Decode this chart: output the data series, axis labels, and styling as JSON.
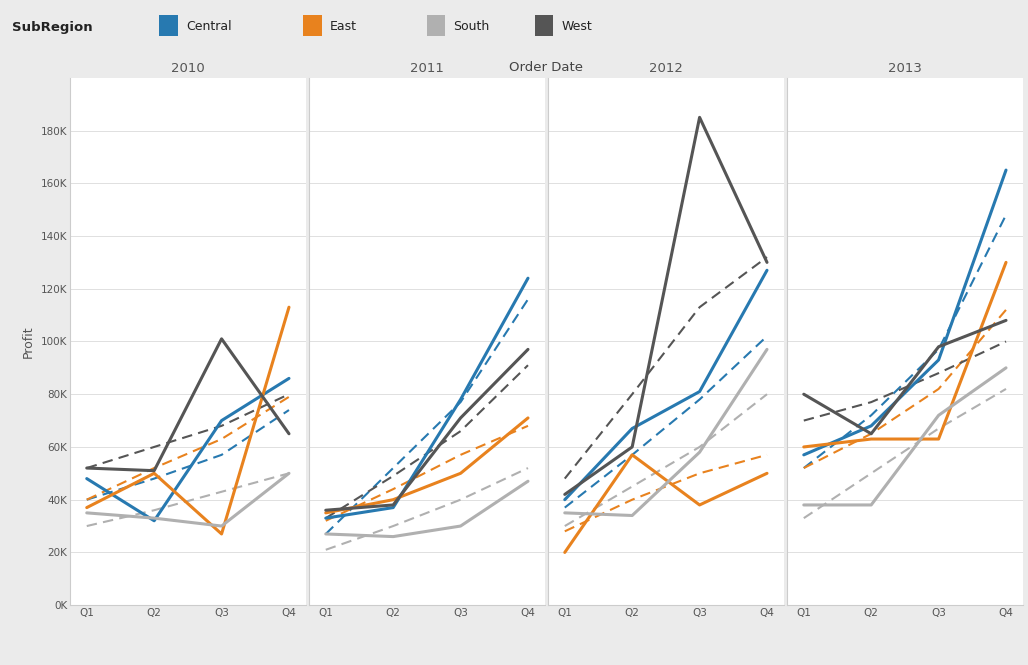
{
  "title": "Order Date",
  "ylabel": "Profit",
  "years": [
    "2010",
    "2011",
    "2012",
    "2013"
  ],
  "quarters": [
    "Q1",
    "Q2",
    "Q3",
    "Q4"
  ],
  "subregions": [
    "Central",
    "East",
    "South",
    "West"
  ],
  "colors": {
    "Central": "#2779B0",
    "East": "#E8821E",
    "South": "#B0B0B0",
    "West": "#555555"
  },
  "legend_colors": {
    "Central": "#2779B0",
    "East": "#E8821E",
    "South": "#AAAAAA",
    "West": "#444444"
  },
  "background_color": "#EBEBEB",
  "panel_background": "#FFFFFF",
  "data": {
    "2010": {
      "Central": {
        "solid": [
          48000,
          32000,
          70000,
          86000
        ],
        "dashed": [
          40000,
          48000,
          57000,
          74000
        ]
      },
      "East": {
        "solid": [
          37000,
          50000,
          27000,
          113000
        ],
        "dashed": [
          40000,
          52000,
          63000,
          79000
        ]
      },
      "South": {
        "solid": [
          35000,
          33000,
          30000,
          50000
        ],
        "dashed": [
          30000,
          36000,
          43000,
          50000
        ]
      },
      "West": {
        "solid": [
          52000,
          51000,
          101000,
          65000
        ],
        "dashed": [
          52000,
          60000,
          68000,
          80000
        ]
      }
    },
    "2011": {
      "Central": {
        "solid": [
          33000,
          37000,
          78000,
          124000
        ],
        "dashed": [
          27000,
          52000,
          77000,
          116000
        ]
      },
      "East": {
        "solid": [
          35000,
          40000,
          50000,
          71000
        ],
        "dashed": [
          32000,
          44000,
          57000,
          68000
        ]
      },
      "South": {
        "solid": [
          27000,
          26000,
          30000,
          47000
        ],
        "dashed": [
          21000,
          30000,
          40000,
          52000
        ]
      },
      "West": {
        "solid": [
          36000,
          38000,
          71000,
          97000
        ],
        "dashed": [
          33000,
          49000,
          66000,
          91000
        ]
      }
    },
    "2012": {
      "Central": {
        "solid": [
          40000,
          67000,
          81000,
          127000
        ],
        "dashed": [
          37000,
          57000,
          78000,
          102000
        ]
      },
      "East": {
        "solid": [
          20000,
          57000,
          38000,
          50000
        ],
        "dashed": [
          28000,
          40000,
          50000,
          57000
        ]
      },
      "South": {
        "solid": [
          35000,
          34000,
          58000,
          97000
        ],
        "dashed": [
          30000,
          45000,
          60000,
          80000
        ]
      },
      "West": {
        "solid": [
          42000,
          60000,
          185000,
          130000
        ],
        "dashed": [
          48000,
          80000,
          113000,
          132000
        ]
      }
    },
    "2013": {
      "Central": {
        "solid": [
          57000,
          68000,
          93000,
          165000
        ],
        "dashed": [
          52000,
          72000,
          97000,
          148000
        ]
      },
      "East": {
        "solid": [
          60000,
          63000,
          63000,
          130000
        ],
        "dashed": [
          52000,
          65000,
          82000,
          112000
        ]
      },
      "South": {
        "solid": [
          38000,
          38000,
          72000,
          90000
        ],
        "dashed": [
          33000,
          50000,
          67000,
          82000
        ]
      },
      "West": {
        "solid": [
          80000,
          65000,
          98000,
          108000
        ],
        "dashed": [
          70000,
          77000,
          88000,
          100000
        ]
      }
    }
  },
  "ylim": [
    0,
    200000
  ],
  "yticks": [
    0,
    20000,
    40000,
    60000,
    80000,
    100000,
    120000,
    140000,
    160000,
    180000
  ],
  "ytick_labels": [
    "0K",
    "20K",
    "40K",
    "60K",
    "80K",
    "100K",
    "120K",
    "140K",
    "160K",
    "180K"
  ]
}
